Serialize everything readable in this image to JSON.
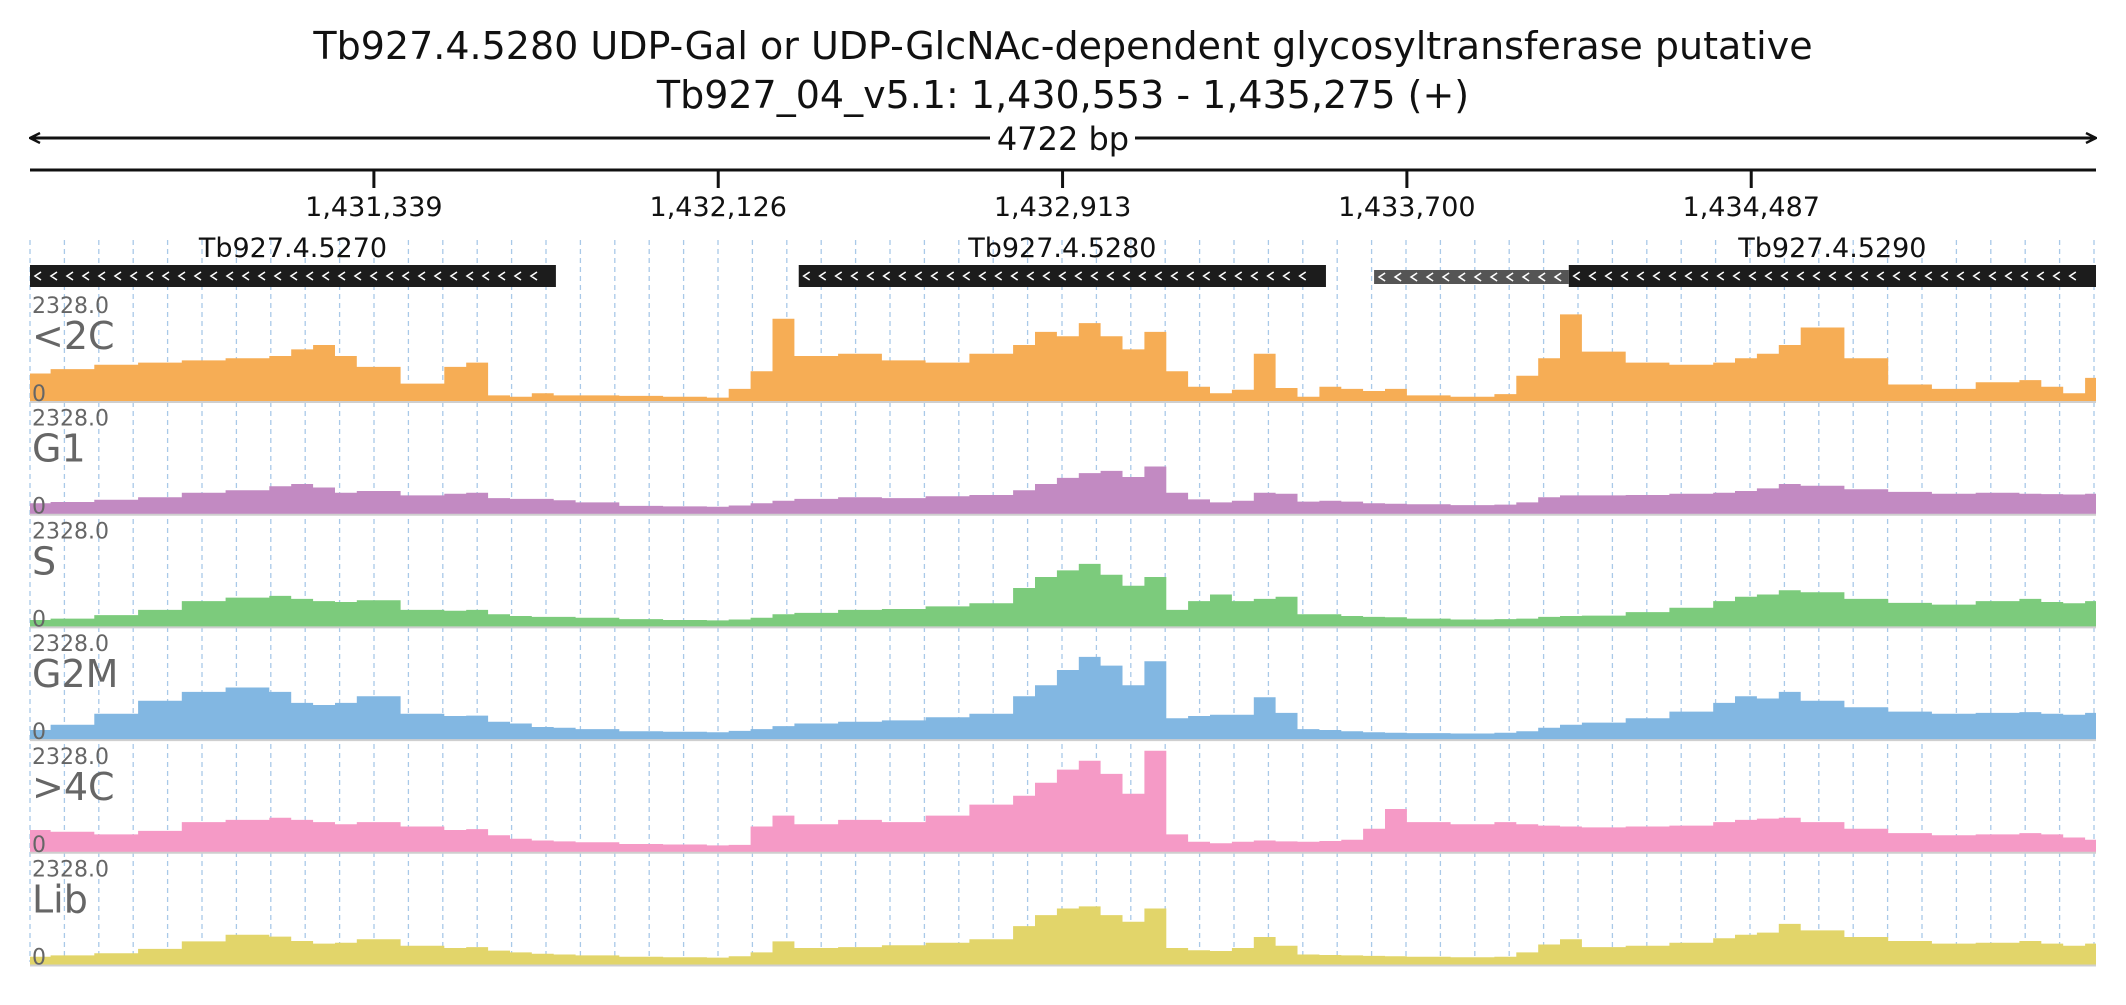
{
  "chart_data": {
    "type": "area",
    "title": "Tb927.4.5280  UDP-Gal or UDP-GlcNAc-dependent glycosyltransferase  putative",
    "subtitle": "Tb927_04_v5.1: 1,430,553 - 1,435,275 (+)",
    "length_label": "4722 bp",
    "xlim": [
      1430553,
      1435275
    ],
    "ticks": [
      {
        "pos": 1431339,
        "label": "1,431,339"
      },
      {
        "pos": 1432126,
        "label": "1,432,126"
      },
      {
        "pos": 1432913,
        "label": "1,432,913"
      },
      {
        "pos": 1433700,
        "label": "1,433,700"
      },
      {
        "pos": 1434487,
        "label": "1,434,487"
      }
    ],
    "genes": [
      {
        "name": "Tb927.4.5270",
        "start": 1430553,
        "end": 1431755,
        "strand": "-",
        "style": "dark"
      },
      {
        "name": "Tb927.4.5280",
        "start": 1432310,
        "end": 1433515,
        "strand": "-",
        "style": "dark"
      },
      {
        "name": "",
        "start": 1433625,
        "end": 1434070,
        "strand": "-",
        "style": "grey"
      },
      {
        "name": "Tb927.4.5290",
        "start": 1434070,
        "end": 1435275,
        "strand": "-",
        "style": "dark"
      }
    ],
    "ylim": [
      0,
      2328.0
    ],
    "ymax_label": "2328.0",
    "ymin_label": "0",
    "x": [
      1430553,
      1430600,
      1430700,
      1430800,
      1430900,
      1431000,
      1431100,
      1431150,
      1431200,
      1431250,
      1431300,
      1431400,
      1431500,
      1431550,
      1431600,
      1431650,
      1431700,
      1431750,
      1431800,
      1431900,
      1432000,
      1432100,
      1432150,
      1432200,
      1432250,
      1432300,
      1432400,
      1432500,
      1432600,
      1432700,
      1432800,
      1432850,
      1432900,
      1432950,
      1433000,
      1433050,
      1433100,
      1433150,
      1433200,
      1433250,
      1433300,
      1433350,
      1433400,
      1433450,
      1433500,
      1433550,
      1433600,
      1433650,
      1433700,
      1433800,
      1433900,
      1433950,
      1434000,
      1434050,
      1434100,
      1434200,
      1434300,
      1434400,
      1434450,
      1434500,
      1434550,
      1434600,
      1434700,
      1434800,
      1434900,
      1435000,
      1435100,
      1435150,
      1435200,
      1435250,
      1435275
    ],
    "series": [
      {
        "name": "<2C",
        "color": "#f6ad55",
        "values": [
          650,
          750,
          850,
          900,
          950,
          1000,
          1050,
          1200,
          1300,
          1050,
          800,
          420,
          800,
          900,
          150,
          120,
          200,
          150,
          150,
          140,
          120,
          100,
          300,
          700,
          1900,
          1050,
          1100,
          950,
          900,
          1100,
          1300,
          1600,
          1500,
          1800,
          1500,
          1200,
          1600,
          700,
          350,
          200,
          280,
          1100,
          320,
          120,
          350,
          300,
          250,
          300,
          150,
          120,
          180,
          600,
          1000,
          2000,
          1150,
          900,
          850,
          900,
          1000,
          1100,
          1300,
          1700,
          1000,
          400,
          300,
          450,
          500,
          350,
          200,
          550,
          700
        ]
      },
      {
        "name": "G1",
        "color": "#c28ac2",
        "values": [
          260,
          290,
          340,
          400,
          500,
          560,
          650,
          700,
          620,
          500,
          540,
          440,
          480,
          500,
          380,
          360,
          360,
          330,
          280,
          200,
          190,
          180,
          210,
          260,
          320,
          360,
          400,
          380,
          420,
          450,
          560,
          700,
          840,
          950,
          1000,
          860,
          1100,
          500,
          350,
          280,
          320,
          500,
          480,
          300,
          320,
          300,
          260,
          250,
          240,
          220,
          230,
          280,
          400,
          440,
          440,
          450,
          480,
          500,
          540,
          600,
          700,
          660,
          580,
          520,
          480,
          500,
          480,
          470,
          460,
          480,
          560
        ]
      },
      {
        "name": "S",
        "color": "#7ccb7c",
        "values": [
          170,
          200,
          280,
          400,
          600,
          680,
          720,
          650,
          600,
          580,
          620,
          400,
          380,
          400,
          300,
          260,
          240,
          240,
          220,
          190,
          170,
          160,
          180,
          220,
          300,
          330,
          400,
          420,
          480,
          550,
          900,
          1150,
          1300,
          1450,
          1200,
          950,
          1150,
          400,
          600,
          750,
          600,
          650,
          700,
          300,
          300,
          260,
          240,
          230,
          200,
          180,
          190,
          200,
          240,
          260,
          270,
          350,
          450,
          600,
          700,
          750,
          850,
          800,
          650,
          560,
          520,
          600,
          650,
          580,
          550,
          600,
          660
        ]
      },
      {
        "name": "G2M",
        "color": "#82b7e2",
        "values": [
          230,
          350,
          600,
          900,
          1100,
          1200,
          1100,
          850,
          800,
          850,
          1000,
          600,
          550,
          560,
          420,
          380,
          300,
          280,
          250,
          200,
          190,
          180,
          210,
          250,
          320,
          380,
          420,
          450,
          520,
          600,
          1000,
          1250,
          1600,
          1900,
          1700,
          1250,
          1800,
          500,
          550,
          580,
          580,
          980,
          620,
          250,
          230,
          200,
          180,
          170,
          160,
          150,
          170,
          200,
          280,
          350,
          400,
          500,
          650,
          850,
          1000,
          950,
          1100,
          900,
          750,
          650,
          600,
          620,
          640,
          600,
          580,
          620,
          860
        ]
      },
      {
        "name": ">4C",
        "color": "#f59ac6",
        "values": [
          520,
          480,
          420,
          500,
          700,
          750,
          800,
          750,
          700,
          650,
          700,
          600,
          520,
          540,
          400,
          320,
          280,
          260,
          240,
          200,
          190,
          170,
          180,
          600,
          850,
          650,
          750,
          700,
          850,
          1100,
          1300,
          1600,
          1900,
          2100,
          1800,
          1350,
          2328,
          420,
          250,
          220,
          250,
          280,
          260,
          250,
          270,
          300,
          550,
          1000,
          700,
          650,
          700,
          650,
          620,
          600,
          580,
          600,
          620,
          700,
          750,
          780,
          800,
          700,
          550,
          450,
          400,
          420,
          450,
          420,
          350,
          300,
          280
        ]
      },
      {
        "name": "Lib",
        "color": "#e2d56a",
        "values": [
          200,
          230,
          280,
          380,
          550,
          700,
          660,
          560,
          500,
          520,
          600,
          450,
          400,
          420,
          340,
          300,
          270,
          250,
          230,
          200,
          190,
          180,
          210,
          300,
          550,
          400,
          420,
          460,
          520,
          600,
          900,
          1150,
          1300,
          1350,
          1150,
          1000,
          1300,
          400,
          350,
          330,
          400,
          650,
          450,
          250,
          240,
          230,
          220,
          210,
          200,
          190,
          200,
          300,
          480,
          600,
          420,
          450,
          520,
          620,
          700,
          750,
          950,
          800,
          650,
          560,
          500,
          520,
          560,
          500,
          450,
          500,
          580
        ]
      }
    ]
  }
}
